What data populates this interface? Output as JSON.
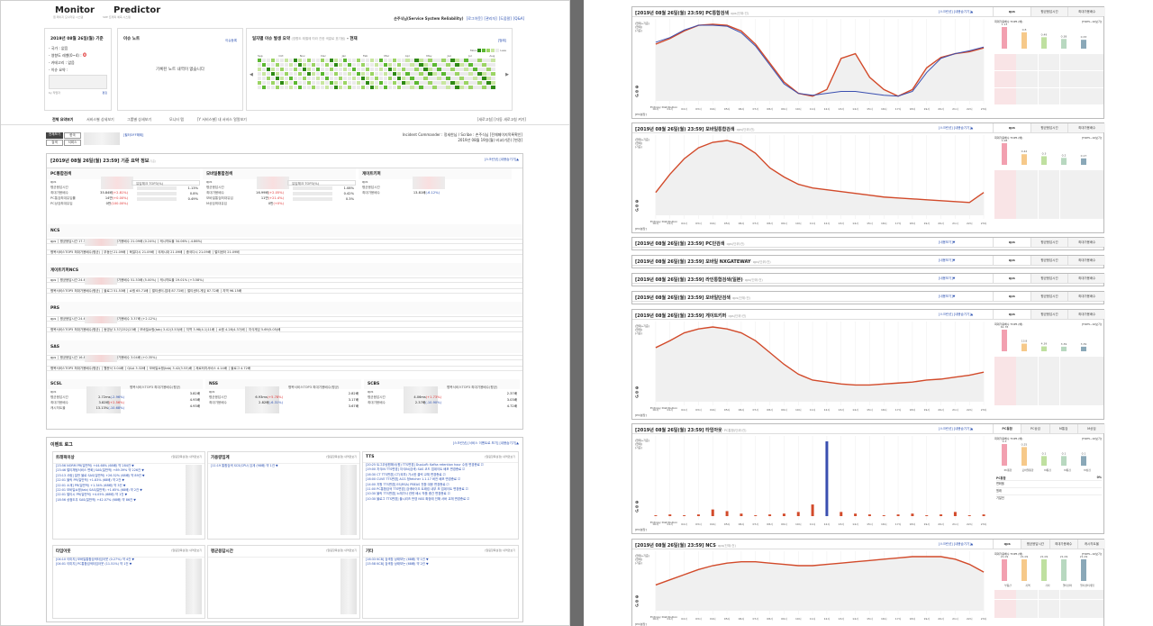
{
  "header": {
    "monitor": "Monitor",
    "predictor": "Predictor",
    "monitor_sub": "웹 페이지 모니터링 시스템",
    "predictor_sub": "SRE 트래픽 예측 시스템",
    "user": "손주식님(Service System Reliability)",
    "links": [
      "[로그아웃]",
      "[관리자]",
      "[도움말]",
      "[Q&A]"
    ]
  },
  "status_box": {
    "title": "2019년 08월 26일(월) 기준",
    "items": [
      {
        "label": "- 국가 :",
        "value": "없음"
      },
      {
        "label": "- 영향도 레벨(0~4) :",
        "value": "0"
      },
      {
        "label": "- 카테고리 :",
        "value": "없음"
      },
      {
        "label": "- 이슈 요약 :",
        "value": ""
      }
    ],
    "footer_left": "by 작업자",
    "footer_right": "편집"
  },
  "issue_note": {
    "title": "이슈 노트",
    "link": "이슈등록",
    "empty": "기록된 노트 내역이 없습니다"
  },
  "calendar": {
    "title": "일자별 이슈 발생 요약",
    "subtitle": "(영향도 레벨에 따라 진한 색깔로 표기됨)",
    "suffix": "- 현재",
    "link": "[범례]",
    "legend_left": "More",
    "legend_right": "Less",
    "months": [
      "Sep",
      "Oct",
      "Nov",
      "Dec",
      "Jan",
      "Feb",
      "Mar",
      "Apr",
      "May",
      "Jun",
      "Jul",
      "Aug"
    ]
  },
  "tabs": [
    "전체 요약보기",
    "서비스별 상세보기",
    "그룹별 상세보기",
    "모니터 맵",
    "[Y 서비스별] 내 서비스 얼얼보기"
  ],
  "tab_right": "[새로고침] [자동 새로고침 켜기]",
  "view_buttons": [
    "전체보기",
    "한국",
    "검색",
    "서비스"
  ],
  "view_link": "[필터OFF해제]",
  "incident": "Incident Commander : 정세한님 / Scribe : 손주식님 [전체페이지목록확인]",
  "incident_date": "2019년 08월 19일(월) 비교(기준) [변경]",
  "summary": {
    "title": "[2019년 08월 26일(월) 23:59] 기준 요약 정보",
    "title_note": "(기준)",
    "toggle": "[스크린샷] [내용숨기기]▲"
  },
  "groups_top": [
    {
      "name": "PC통합검색",
      "rows": [
        {
          "k": "qps",
          "v": ""
        },
        {
          "k": "평균응답시간",
          "v": ""
        },
        {
          "k": "최대가용배수",
          "v": "35.84배",
          "d": "(+2.81%)"
        },
        {
          "k": "PC통검최대유입률",
          "v": "14만",
          "d": "(+0.00%)"
        },
        {
          "k": "PC상검최대유입",
          "v": "0만",
          "d": "(100.00%)"
        }
      ],
      "right": [
        {
          "k": "유입체크 TOP3(%)",
          "v": ""
        },
        {
          "k": "",
          "v": "1.13%"
        },
        {
          "k": "",
          "v": "0.8%"
        },
        {
          "k": "",
          "v": "0.49%"
        }
      ]
    },
    {
      "name": "모바일통합검색",
      "rows": [
        {
          "k": "qps",
          "v": ""
        },
        {
          "k": "평균응답시간",
          "v": ""
        },
        {
          "k": "최대가용배수",
          "v": "16.99배",
          "d": "(+2.05%)"
        },
        {
          "k": "모바일통검최대유입",
          "v": "11만",
          "d": "(+21.4%)"
        },
        {
          "k": "M상검최대유입",
          "v": "0만",
          "d": "(+0%)"
        }
      ],
      "right": [
        {
          "k": "유입체크 TOP3(%)",
          "v": ""
        },
        {
          "k": "",
          "v": "1.08%"
        },
        {
          "k": "",
          "v": "0.42%"
        },
        {
          "k": "",
          "v": "0.3%"
        }
      ]
    },
    {
      "name": "게이트키퍼",
      "rows": [
        {
          "k": "qps",
          "v": ""
        },
        {
          "k": "평균응답시간",
          "v": ""
        },
        {
          "k": "최대가용배수",
          "v": "13.81배",
          "d": "(-6.12%)"
        }
      ],
      "right": []
    }
  ],
  "ncs": {
    "name": "NCS",
    "line1": "qps │ 평균응답시간 17.37ms (+5.27%) │ 최대가용배수 21.09배 (0.24%) │ 캐시히트율 34.06% (-4.86%)",
    "line2": "병목서비스TOP5 최대가용배수(평균) │ 부동산 21.09배 │ 육일다시 21.09배 │ 국제시대 21.09배 │ 중국다시 21.09배 │ 멀티센터 21.09배"
  },
  "gk_ncs": {
    "name": "게이트키퍼NCS",
    "line1": "qps │ 평균응답시간 24.69ms (+4.01%) │ 최대가용배수 51.53배 (5.00%) │ 캐시히트율 19.01% (+3.58%)",
    "line2": "병목서비스TOP5 최대가용배수(평균) │ 블로그 51.53배 │ 쇼핑 65.71배 │ 멀티센터-업데 87.72배 │ 멀티센터-게임 87.72배 │ 지역 96.15배"
  },
  "prs": {
    "name": "PRS",
    "line1": "qps │ 평균응답시간 24.69ms (+7.77%) │ 최대가용배수 3.37배 (+2.12%)",
    "line2": "병목서비스TOP5 최대가용배수(평균) │ 동영상 3.37(252)23배 │ 모바일쇼핑(tab) 3.42(3.53)배 │ 지역 3.98(4.1)11배 │ 쇼핑 4.28(4.37)배 │ 지식게임 5.69(5.05)배"
  },
  "sas": {
    "name": "SAS",
    "line1": "qps │ 평균응답시간 16.85ms (+1.86%) │ 최대가용배수 3.04배 (+0.35%)",
    "line2": "병목서비스TOP5 최대가용배수(평균) │ 웹문서 3.04배 │ Q&A 3.32배 │ 모바일쇼핑(tab) 3.42(3.53)배 │ 제로터치서비스 4.14배 │ 블로그 4.72배"
  },
  "scsl": {
    "name": "SCSL",
    "rows": [
      {
        "k": "qps",
        "v": ""
      },
      {
        "k": "평균응답시간",
        "v": "2.72ms",
        "d": "(-2.96%)"
      },
      {
        "k": "최대가용배수",
        "v": "3.82배",
        "d": "(+2.56%)"
      },
      {
        "k": "캐시히트율",
        "v": "13.13%",
        "d": "(-10.68%)"
      }
    ],
    "right": [
      "병목서비스TOP3 최대가용배수(평균)",
      "3.82배",
      "4.93배",
      "4.93배"
    ]
  },
  "nss": {
    "name": "NSS",
    "rows": [
      {
        "k": "qps",
        "v": ""
      },
      {
        "k": "평균응답시간",
        "v": "6.93ms",
        "d": "(+5.78%)"
      },
      {
        "k": "최대가용배수",
        "v": "2.82배",
        "d": "(-6.31%)"
      }
    ],
    "right": [
      "병목서비스TOP3 최대가용배수(평균)",
      "2.82배",
      "3.17배",
      "3.67배"
    ]
  },
  "scbs": {
    "name": "SCBS",
    "rows": [
      {
        "k": "qps",
        "v": ""
      },
      {
        "k": "평균응답시간",
        "v": "4.06ms",
        "d": "(+1.73%)"
      },
      {
        "k": "최대가용배수",
        "v": "2.37배",
        "d": "(-10.90%)"
      }
    ],
    "right": [
      "병목서비스TOP3 최대가용배수(평균)",
      "2.37배",
      "3.03배",
      "4.72배"
    ]
  },
  "events": {
    "title": "이벤트 로그",
    "toggle": "[스크린샷] [서비스 이벤트로 보기] [내용숨기기]▲",
    "traffic": {
      "name": "트래픽이상",
      "link": "[알림항목설정] 내역만보기",
      "lines": [
        "[23:56 NORM PR(일반적) +44.68% (68배) 약 284건 ▼",
        "[23:46 멀티채팅서비스 변화] SAS(일반적) +89.39% 약 226건 ▼",
        "[23:13 사람] 일반 블로 SAS(일반적) +26.52% (68배) 약 89건 ▼",
        "[22:01 블릭 PR(일반적) +1.83% (68배) 약 2건 ▼",
        "[22:01 소재] PR(일반적) +1.34% (68배) 약 3건 ▼",
        "[22:01 모바일쇼핑(tab) SAS(일반적) +1.65% (68배) 약 2건 ▼",
        "[22:01 멀티시 PR(일반적) +4.05% (68배) 약 1건 ▼",
        "[18:56 상점도우 SAS(일반적) +42.07% (68배) 약 86건 ▼"
      ]
    },
    "capacity": {
      "name": "가용량임계",
      "link": "[알림항목설정] 내역만보기",
      "lines": [
        "[11:19 통합검색 SCS(CPU) 임계 (98배) 약 1건 ▼"
      ]
    },
    "tts": {
      "name": "TTS",
      "link": "[알림항목설정] 내역만보기",
      "lines": [
        "[20:25 트그우링원해서(원) TTS변경] DupLoR: Kafka retention hour 수정 변경총료 ☑",
        "[19:00 지식IN TTS변경] 지식IN(검색) SAS 코드 업데이트 배포 변경총료 ☑",
        "[16:30 CT TTS변경] CT(외부) 가시한 클릭 교체 변경총료 ☑",
        "[16:00 CUVE TTS변경] ACG 정fetcher 1.1.17 버전 배포 변경총료 ☑",
        "[14:00 지원 TTS변경] ES(RSA) PBEAS 전환 대응 변경총료 ☑",
        "[11:00 PC통합검색 TTS변경] 검색바이오 트래킹 내부 보 업데이트 변경총료 ☑",
        "[10:30 블릭 TTS변경] 노래가사 컨텐 배시 작품 중간 변경총료 ☑",
        "[10:30 블로그 TTS변경] 블시리즈 반영 NSS 확장에 인해 서버 교체 변경총료 ☑"
      ]
    },
    "timeout": {
      "name": "타임아웃",
      "link": "[알림항목설정] 내역만보기",
      "lines": [
        "[04:10 이미지] 모바일통합검색타임아웃 (0.27%) 약 4건 ▼",
        "[04:01 이미지] PC통합검색타임아웃 (11.51%) 약 1건 ▼"
      ]
    },
    "latency": {
      "name": "평균응답시간",
      "link": "[알림항목설정] 내역만보기",
      "lines": []
    },
    "other": {
      "name": "기타",
      "link": "[알림항목설정] 내역만보기",
      "lines": [
        "[16:33 KCB] 검색창 상태보는 (68배) 약 1건 ▼",
        "[15:58 KCB] 검색창 상태보는 (68배) 약 2건 ▼"
      ]
    }
  },
  "right_panels": [
    {
      "title": "[2019년 08월 26일(월) 23:59] PC통합검색",
      "note": "· qps(단위:건)",
      "toggle": "[스크린샷] [내용숨기기]▲",
      "tabs": [
        "qps",
        "평균응답시간",
        "최대가용배수"
      ]
    },
    {
      "title": "[2019년 08월 26일(월) 23:59] 모바일통합검색",
      "note": "· qps(단위:건)",
      "toggle": "[스크린샷] [내용숨기기]▲",
      "tabs": [
        "qps",
        "평균응답시간",
        "최대가용배수"
      ]
    },
    {
      "title": "[2019년 08월 26일(월) 23:59] PC단검색",
      "note": "· qps(단위:건)",
      "toggle": "[내용보기]▼",
      "tabs": [
        "qps",
        "평균응답시간",
        "최대가용배수"
      ]
    },
    {
      "title": "[2019년 08월 26일(월) 23:59] 모바일 NXGATEWAY",
      "note": "· qps(단위:건)",
      "toggle": "[내용보기]▼",
      "tabs": [
        "qps",
        "평균응답시간",
        "최대가용배수"
      ]
    },
    {
      "title": "[2019년 08월 26일(월) 23:59] 라인통합검색(일본)",
      "note": "· qps(단위:건)",
      "toggle": "[내용보기]▼",
      "tabs": [
        "qps",
        "평균응답시간",
        "최대가용배수"
      ]
    },
    {
      "title": "[2019년 08월 26일(월) 23:59] 모바일단검색",
      "note": "· qps(단위:건)",
      "toggle": "[내용보기]▼",
      "tabs": [
        "qps",
        "평균응답시간",
        "최대가용배수"
      ]
    },
    {
      "title": "[2019년 08월 26일(월) 23:59] 게이트키퍼",
      "note": "· qps(단위:건)",
      "toggle": "[스크린샷] [내용숨기기]▲",
      "tabs": [
        "qps",
        "평균응답시간",
        "최대가용배수"
      ]
    },
    {
      "title": "[2019년 08월 26일(월) 23:59] 타임아웃",
      "note": "· PC통합(단위:건)",
      "toggle": "[스크린샷] [내용숨기기]▲",
      "tabs": [
        "PC통합",
        "PC상검",
        "M통검",
        "M상검"
      ]
    },
    {
      "title": "[2019년 08월 26일(월) 23:59] NCS",
      "note": "· qps(단위:건)",
      "toggle": "[스크린샷] [내용숨기기]▲",
      "tabs": [
        "qps",
        "평균응답시간",
        "최대가용배수",
        "캐시히트율"
      ]
    }
  ],
  "chart_labels": {
    "ylab": [
      "(현재+기준)",
      "(현재)",
      "(기준)"
    ],
    "entropy": "Entropy Distribution",
    "unit": "[PV/분당]",
    "side_title": "최대가용배수 TOP5 (배)",
    "side_right": "[TOP5~10보기]",
    "timeout_extra": {
      "label": "PC통합",
      "value": "0%",
      "rows": [
        "변화율",
        "원래",
        "기일전"
      ]
    }
  },
  "chart_data": [
    {
      "type": "line",
      "name": "PC통합검색 qps",
      "x": [
        "00시",
        "01시",
        "02시",
        "03시",
        "04시",
        "05시",
        "06시",
        "07시",
        "08시",
        "09시",
        "10시",
        "11시",
        "12시",
        "13시",
        "14시",
        "15시",
        "16시",
        "17시",
        "18시",
        "19시",
        "20시",
        "21시",
        "22시",
        "23시"
      ],
      "series": [
        {
          "name": "현재",
          "values": [
            60,
            66,
            74,
            80,
            81,
            80,
            74,
            60,
            40,
            20,
            8,
            5,
            12,
            45,
            50,
            25,
            12,
            5,
            12,
            35,
            46,
            50,
            52,
            56
          ]
        },
        {
          "name": "기준",
          "values": [
            62,
            67,
            75,
            80,
            80,
            79,
            72,
            58,
            38,
            18,
            8,
            6,
            8,
            10,
            10,
            8,
            6,
            5,
            10,
            30,
            45,
            50,
            53,
            57
          ]
        }
      ],
      "side": {
        "labels": [
          "",
          "",
          "",
          "",
          ""
        ],
        "values": [
          1.13,
          0.8,
          0.49,
          0.38,
          0.33
        ]
      }
    },
    {
      "type": "line",
      "name": "모바일통합검색 qps",
      "x": [
        "00시",
        "01시",
        "02시",
        "03시",
        "04시",
        "05시",
        "06시",
        "07시",
        "08시",
        "09시",
        "10시",
        "11시",
        "12시",
        "13시",
        "14시",
        "15시",
        "16시",
        "17시",
        "18시",
        "19시",
        "20시",
        "21시",
        "22시",
        "23시"
      ],
      "series": [
        {
          "name": "현재",
          "values": [
            25,
            45,
            62,
            74,
            80,
            82,
            78,
            68,
            52,
            42,
            34,
            30,
            28,
            26,
            24,
            22,
            20,
            19,
            18,
            17,
            16,
            15,
            14,
            25
          ]
        }
      ],
      "side": {
        "labels": [
          "",
          "",
          "",
          "",
          ""
        ],
        "values": [
          1.08,
          0.42,
          0.3,
          0.2,
          0.17
        ]
      }
    },
    {
      "type": "line",
      "name": "게이트키퍼 qps",
      "x": [
        "00시",
        "01시",
        "02시",
        "03시",
        "04시",
        "05시",
        "06시",
        "07시",
        "08시",
        "09시",
        "10시",
        "11시",
        "12시",
        "13시",
        "14시",
        "15시",
        "16시",
        "17시",
        "18시",
        "19시",
        "20시",
        "21시",
        "22시",
        "23시"
      ],
      "series": [
        {
          "name": "현재",
          "values": [
            55,
            62,
            70,
            74,
            76,
            74,
            70,
            62,
            50,
            38,
            28,
            22,
            20,
            18,
            17,
            17,
            18,
            19,
            20,
            22,
            23,
            25,
            27,
            30
          ]
        }
      ],
      "side": {
        "labels": [
          "",
          "",
          "",
          "",
          ""
        ],
        "values": [
          61.78,
          13.8,
          4.39,
          3.39,
          3.39
        ]
      }
    },
    {
      "type": "bar",
      "name": "타임아웃 PC통합",
      "x": [
        "00시",
        "01시",
        "02시",
        "03시",
        "04시",
        "05시",
        "06시",
        "07시",
        "08시",
        "09시",
        "10시",
        "11시",
        "12시",
        "13시",
        "14시",
        "15시",
        "16시",
        "17시",
        "18시",
        "19시",
        "20시",
        "21시",
        "22시",
        "23시"
      ],
      "series": [
        {
          "name": "현재",
          "values": [
            1,
            2,
            1,
            2,
            8,
            6,
            3,
            1,
            2,
            3,
            5,
            14,
            90,
            5,
            3,
            2,
            1,
            2,
            3,
            1,
            2,
            5,
            1,
            2
          ]
        }
      ],
      "side": {
        "labels": [
          "PC통합",
          "모바일통합",
          "M통검",
          "M통검",
          "M상검"
        ],
        "values": [
          0.3,
          0.25,
          0.1,
          0.1,
          0.1
        ]
      }
    },
    {
      "type": "line",
      "name": "NCS qps",
      "x": [
        "00시",
        "01시",
        "02시",
        "03시",
        "04시",
        "05시",
        "06시",
        "07시",
        "08시",
        "09시",
        "10시",
        "11시",
        "12시",
        "13시",
        "14시",
        "15시",
        "16시",
        "17시",
        "18시",
        "19시",
        "20시",
        "21시",
        "22시",
        "23시"
      ],
      "series": [
        {
          "name": "현재",
          "values": [
            20,
            24,
            28,
            32,
            35,
            37,
            38,
            38,
            37,
            36,
            35,
            35,
            36,
            37,
            38,
            39,
            40,
            41,
            42,
            42,
            42,
            40,
            36,
            30
          ]
        }
      ],
      "side": {
        "labels": [
          "부동산",
          "지역",
          "기타",
          "멀티센터",
          "멀티센터게임"
        ],
        "values": [
          21.09,
          21.09,
          21.09,
          21.09,
          21.09
        ]
      }
    }
  ]
}
